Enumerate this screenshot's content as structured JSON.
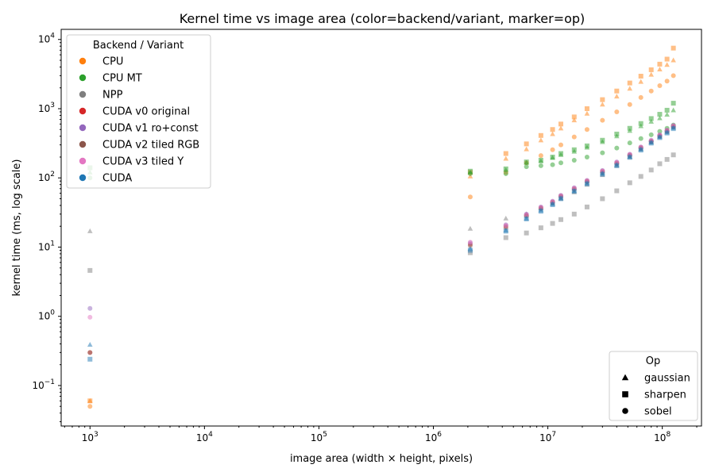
{
  "chart_data": {
    "type": "scatter",
    "title": "Kernel time vs image area (color=backend/variant, marker=op)",
    "xlabel": "image area (width × height, pixels)",
    "ylabel": "kernel time (ms, log scale)",
    "xscale": "log",
    "yscale": "log",
    "xlim": [
      560,
      220000000
    ],
    "ylim": [
      0.026,
      14000
    ],
    "x_ticks": [
      {
        "value": 1000,
        "base": "10",
        "exp": "3"
      },
      {
        "value": 10000,
        "base": "10",
        "exp": "4"
      },
      {
        "value": 100000,
        "base": "10",
        "exp": "5"
      },
      {
        "value": 1000000,
        "base": "10",
        "exp": "6"
      },
      {
        "value": 10000000,
        "base": "10",
        "exp": "7"
      },
      {
        "value": 100000000,
        "base": "10",
        "exp": "8"
      }
    ],
    "y_ticks": [
      {
        "value": 0.1,
        "base": "10",
        "exp": "−1"
      },
      {
        "value": 1,
        "base": "10",
        "exp": "0"
      },
      {
        "value": 10,
        "base": "10",
        "exp": "1"
      },
      {
        "value": 100,
        "base": "10",
        "exp": "2"
      },
      {
        "value": 1000,
        "base": "10",
        "exp": "3"
      },
      {
        "value": 10000,
        "base": "10",
        "exp": "4"
      }
    ],
    "grid": false,
    "legend_backend": {
      "title": "Backend / Variant",
      "placement": "top-left",
      "entries": [
        {
          "name": "CPU",
          "color": "#ff7f0e"
        },
        {
          "name": "CPU MT",
          "color": "#2ca02c"
        },
        {
          "name": "NPP",
          "color": "#7f7f7f"
        },
        {
          "name": "CUDA v0 original",
          "color": "#d62728"
        },
        {
          "name": "CUDA v1 ro+const",
          "color": "#9467bd"
        },
        {
          "name": "CUDA v2 tiled RGB",
          "color": "#8c564b"
        },
        {
          "name": "CUDA v3 tiled Y",
          "color": "#e377c2"
        },
        {
          "name": "CUDA",
          "color": "#1f77b4"
        }
      ]
    },
    "legend_op": {
      "title": "Op",
      "placement": "bottom-right",
      "entries": [
        {
          "name": "gaussian",
          "marker": "triangle"
        },
        {
          "name": "sharpen",
          "marker": "square"
        },
        {
          "name": "sobel",
          "marker": "circle"
        }
      ]
    },
    "series": [
      {
        "name": "CPU",
        "op": "gaussian",
        "color": "#ff7f0e",
        "x": [
          1000,
          2100000,
          4300000,
          6500000,
          8700000,
          11000000,
          13000000,
          17000000,
          22000000,
          30000000,
          40000000,
          52000000,
          65000000,
          80000000,
          95000000,
          110000000,
          125000000
        ],
        "y": [
          0.06,
          105,
          190,
          260,
          350,
          430,
          520,
          680,
          850,
          1150,
          1500,
          1950,
          2450,
          3100,
          3700,
          4300,
          5000
        ]
      },
      {
        "name": "CPU",
        "op": "sharpen",
        "color": "#ff7f0e",
        "x": [
          1000,
          2100000,
          4300000,
          6500000,
          8700000,
          11000000,
          13000000,
          17000000,
          22000000,
          30000000,
          40000000,
          52000000,
          65000000,
          80000000,
          95000000,
          110000000,
          125000000
        ],
        "y": [
          0.06,
          120,
          225,
          310,
          410,
          500,
          600,
          760,
          1000,
          1350,
          1800,
          2350,
          2950,
          3650,
          4400,
          5200,
          7500
        ]
      },
      {
        "name": "CPU",
        "op": "sobel",
        "color": "#ff7f0e",
        "x": [
          1000,
          2100000,
          4300000,
          6500000,
          8700000,
          11000000,
          13000000,
          17000000,
          22000000,
          30000000,
          40000000,
          52000000,
          65000000,
          80000000,
          95000000,
          110000000,
          125000000
        ],
        "y": [
          0.05,
          53,
          120,
          165,
          210,
          255,
          300,
          390,
          500,
          680,
          900,
          1150,
          1450,
          1800,
          2150,
          2500,
          3000
        ]
      },
      {
        "name": "CPU MT",
        "op": "gaussian",
        "color": "#2ca02c",
        "x": [
          1000,
          2100000,
          4300000,
          6500000,
          8700000,
          11000000,
          13000000,
          17000000,
          22000000,
          30000000,
          40000000,
          52000000,
          65000000,
          80000000,
          95000000,
          110000000,
          125000000
        ],
        "y": [
          120,
          120,
          130,
          165,
          175,
          195,
          215,
          240,
          275,
          330,
          400,
          480,
          560,
          650,
          730,
          820,
          950
        ]
      },
      {
        "name": "CPU MT",
        "op": "sharpen",
        "color": "#2ca02c",
        "x": [
          1000,
          2100000,
          4300000,
          6500000,
          8700000,
          11000000,
          13000000,
          17000000,
          22000000,
          30000000,
          40000000,
          52000000,
          65000000,
          80000000,
          95000000,
          110000000,
          125000000
        ],
        "y": [
          140,
          125,
          135,
          170,
          180,
          200,
          225,
          255,
          290,
          350,
          430,
          520,
          610,
          720,
          830,
          950,
          1200
        ]
      },
      {
        "name": "CPU MT",
        "op": "sobel",
        "color": "#2ca02c",
        "x": [
          1000,
          2100000,
          4300000,
          6500000,
          8700000,
          11000000,
          13000000,
          17000000,
          22000000,
          30000000,
          40000000,
          52000000,
          65000000,
          80000000,
          95000000,
          110000000,
          125000000
        ],
        "y": [
          100,
          115,
          115,
          145,
          150,
          155,
          165,
          180,
          200,
          230,
          270,
          320,
          370,
          420,
          470,
          520,
          580
        ]
      },
      {
        "name": "NPP",
        "op": "gaussian",
        "color": "#7f7f7f",
        "x": [
          1000,
          2100000,
          4300000,
          6500000,
          8700000,
          11000000,
          13000000,
          17000000,
          22000000,
          30000000,
          40000000,
          52000000,
          65000000,
          80000000,
          95000000,
          110000000,
          125000000
        ],
        "y": [
          17,
          18.5,
          26,
          30,
          37,
          43,
          50,
          62,
          80,
          110,
          150,
          200,
          260,
          330,
          400,
          470,
          550
        ]
      },
      {
        "name": "NPP",
        "op": "sharpen",
        "color": "#7f7f7f",
        "x": [
          1000,
          2100000,
          4300000,
          6500000,
          8700000,
          11000000,
          13000000,
          17000000,
          22000000,
          30000000,
          40000000,
          52000000,
          65000000,
          80000000,
          95000000,
          110000000,
          125000000
        ],
        "y": [
          4.6,
          8.3,
          13.7,
          16,
          19,
          22,
          25,
          30,
          38,
          50,
          65,
          85,
          105,
          130,
          160,
          185,
          215
        ]
      },
      {
        "name": "CUDA v0 original",
        "op": "sobel",
        "color": "#d62728",
        "x": [
          1000,
          2100000,
          4300000,
          6500000,
          8700000,
          11000000,
          13000000,
          17000000,
          22000000,
          30000000,
          40000000,
          52000000,
          65000000,
          80000000,
          95000000,
          110000000,
          125000000
        ],
        "y": [
          0.3,
          11,
          20,
          29,
          37,
          45,
          55,
          70,
          90,
          125,
          165,
          215,
          275,
          340,
          410,
          480,
          560
        ]
      },
      {
        "name": "CUDA v1 ro+const",
        "op": "sobel",
        "color": "#9467bd",
        "x": [
          1000,
          2100000,
          4300000,
          6500000,
          8700000,
          11000000,
          13000000,
          17000000,
          22000000,
          30000000,
          40000000,
          52000000,
          65000000,
          80000000,
          95000000,
          110000000,
          125000000
        ],
        "y": [
          1.3,
          11.5,
          21,
          30,
          38,
          46,
          56,
          72,
          92,
          128,
          170,
          220,
          280,
          350,
          420,
          490,
          570
        ]
      },
      {
        "name": "CUDA v2 tiled RGB",
        "op": "sobel",
        "color": "#8c564b",
        "x": [
          1000,
          2100000,
          4300000,
          6500000,
          8700000,
          11000000,
          13000000,
          17000000,
          22000000,
          30000000,
          40000000,
          52000000,
          65000000,
          80000000,
          95000000,
          110000000,
          125000000
        ],
        "y": [
          0.3,
          10.5,
          19,
          28,
          36,
          44,
          53,
          68,
          88,
          120,
          160,
          210,
          268,
          335,
          400,
          470,
          545
        ]
      },
      {
        "name": "CUDA v3 tiled Y",
        "op": "sobel",
        "color": "#e377c2",
        "x": [
          1000,
          2100000,
          4300000,
          6500000,
          8700000,
          11000000,
          13000000,
          17000000,
          22000000,
          30000000,
          40000000,
          52000000,
          65000000,
          80000000,
          95000000,
          110000000,
          125000000
        ],
        "y": [
          0.97,
          11.8,
          20.5,
          29.5,
          37.5,
          45.5,
          55,
          71,
          91,
          126,
          168,
          218,
          278,
          345,
          415,
          485,
          565
        ]
      },
      {
        "name": "CUDA",
        "op": "gaussian",
        "color": "#1f77b4",
        "x": [
          1000,
          2100000,
          4300000,
          6500000,
          8700000,
          11000000,
          13000000,
          17000000,
          22000000,
          30000000,
          40000000,
          52000000,
          65000000,
          80000000,
          95000000,
          110000000,
          125000000
        ],
        "y": [
          0.39,
          9.5,
          17.5,
          26,
          34,
          42,
          51,
          65,
          84,
          116,
          155,
          203,
          260,
          325,
          390,
          455,
          530
        ]
      },
      {
        "name": "CUDA",
        "op": "sharpen",
        "color": "#1f77b4",
        "x": [
          1000,
          2100000,
          4300000,
          6500000,
          8700000,
          11000000,
          13000000,
          17000000,
          22000000,
          30000000,
          40000000,
          52000000,
          65000000,
          80000000,
          95000000,
          110000000,
          125000000
        ],
        "y": [
          0.24,
          9,
          17,
          25.5,
          33,
          41,
          50,
          64,
          82,
          113,
          150,
          198,
          252,
          318,
          382,
          445,
          515
        ]
      }
    ]
  }
}
